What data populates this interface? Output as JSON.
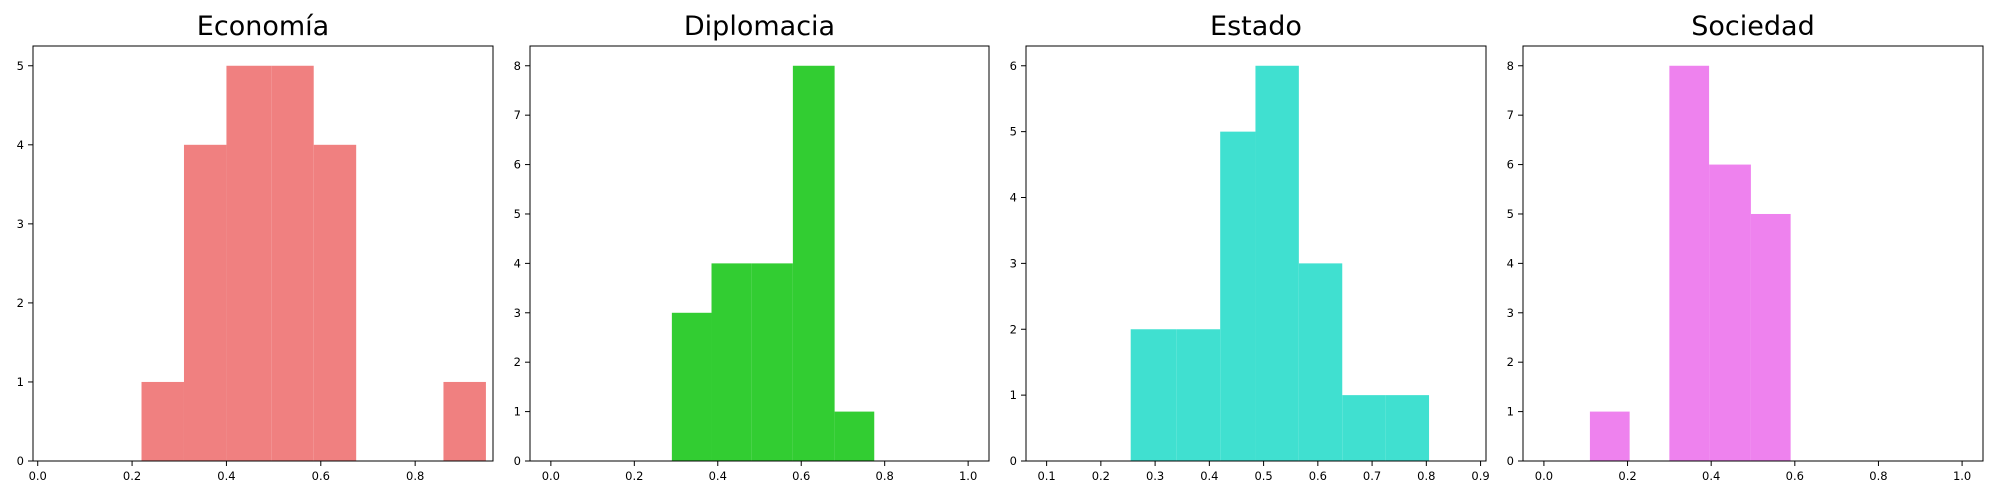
{
  "chart_data": [
    {
      "type": "bar",
      "title": "Economía",
      "color": "#f08080",
      "xlim": [
        -0.01,
        0.965
      ],
      "ylim": [
        0,
        5.25
      ],
      "xticks": [
        0.0,
        0.2,
        0.4,
        0.6,
        0.8
      ],
      "xtick_labels": [
        "0.0",
        "0.2",
        "0.4",
        "0.6",
        "0.8"
      ],
      "yticks": [
        0,
        1,
        2,
        3,
        4,
        5
      ],
      "ytick_labels": [
        "0",
        "1",
        "2",
        "3",
        "4",
        "5"
      ],
      "bins": [
        {
          "x0": 0.22,
          "x1": 0.31,
          "count": 1
        },
        {
          "x0": 0.31,
          "x1": 0.4,
          "count": 4
        },
        {
          "x0": 0.4,
          "x1": 0.495,
          "count": 5
        },
        {
          "x0": 0.495,
          "x1": 0.585,
          "count": 5
        },
        {
          "x0": 0.585,
          "x1": 0.675,
          "count": 4
        },
        {
          "x0": 0.675,
          "x1": 0.765,
          "count": 0
        },
        {
          "x0": 0.765,
          "x1": 0.86,
          "count": 0
        },
        {
          "x0": 0.86,
          "x1": 0.95,
          "count": 1
        }
      ]
    },
    {
      "type": "bar",
      "title": "Diplomacia",
      "color": "#32cd32",
      "xlim": [
        -0.05,
        1.05
      ],
      "ylim": [
        0,
        8.4
      ],
      "xticks": [
        0.0,
        0.2,
        0.4,
        0.6,
        0.8,
        1.0
      ],
      "xtick_labels": [
        "0.0",
        "0.2",
        "0.4",
        "0.6",
        "0.8",
        "1.0"
      ],
      "yticks": [
        0,
        1,
        2,
        3,
        4,
        5,
        6,
        7,
        8
      ],
      "ytick_labels": [
        "0",
        "1",
        "2",
        "3",
        "4",
        "5",
        "6",
        "7",
        "8"
      ],
      "bins": [
        {
          "x0": 0.29,
          "x1": 0.385,
          "count": 3
        },
        {
          "x0": 0.385,
          "x1": 0.48,
          "count": 4
        },
        {
          "x0": 0.48,
          "x1": 0.58,
          "count": 4
        },
        {
          "x0": 0.58,
          "x1": 0.68,
          "count": 8
        },
        {
          "x0": 0.68,
          "x1": 0.775,
          "count": 1
        }
      ]
    },
    {
      "type": "bar",
      "title": "Estado",
      "color": "#40e0d0",
      "xlim": [
        0.062,
        0.91
      ],
      "ylim": [
        0,
        6.3
      ],
      "xticks": [
        0.1,
        0.2,
        0.3,
        0.4,
        0.5,
        0.6,
        0.7,
        0.8,
        0.9
      ],
      "xtick_labels": [
        "0.1",
        "0.2",
        "0.3",
        "0.4",
        "0.5",
        "0.6",
        "0.7",
        "0.8",
        "0.9"
      ],
      "yticks": [
        0,
        1,
        2,
        3,
        4,
        5,
        6
      ],
      "ytick_labels": [
        "0",
        "1",
        "2",
        "3",
        "4",
        "5",
        "6"
      ],
      "bins": [
        {
          "x0": 0.255,
          "x1": 0.34,
          "count": 2
        },
        {
          "x0": 0.34,
          "x1": 0.42,
          "count": 2
        },
        {
          "x0": 0.42,
          "x1": 0.485,
          "count": 5
        },
        {
          "x0": 0.485,
          "x1": 0.565,
          "count": 6
        },
        {
          "x0": 0.565,
          "x1": 0.645,
          "count": 3
        },
        {
          "x0": 0.645,
          "x1": 0.725,
          "count": 1
        },
        {
          "x0": 0.725,
          "x1": 0.805,
          "count": 1
        }
      ]
    },
    {
      "type": "bar",
      "title": "Sociedad",
      "color": "#ee82ee",
      "xlim": [
        -0.05,
        1.05
      ],
      "ylim": [
        0,
        8.4
      ],
      "xticks": [
        0.0,
        0.2,
        0.4,
        0.6,
        0.8,
        1.0
      ],
      "xtick_labels": [
        "0.0",
        "0.2",
        "0.4",
        "0.6",
        "0.8",
        "1.0"
      ],
      "yticks": [
        0,
        1,
        2,
        3,
        4,
        5,
        6,
        7,
        8
      ],
      "ytick_labels": [
        "0",
        "1",
        "2",
        "3",
        "4",
        "5",
        "6",
        "7",
        "8"
      ],
      "bins": [
        {
          "x0": 0.11,
          "x1": 0.205,
          "count": 1
        },
        {
          "x0": 0.205,
          "x1": 0.3,
          "count": 0
        },
        {
          "x0": 0.3,
          "x1": 0.395,
          "count": 8
        },
        {
          "x0": 0.395,
          "x1": 0.495,
          "count": 6
        },
        {
          "x0": 0.495,
          "x1": 0.59,
          "count": 5
        }
      ]
    }
  ]
}
